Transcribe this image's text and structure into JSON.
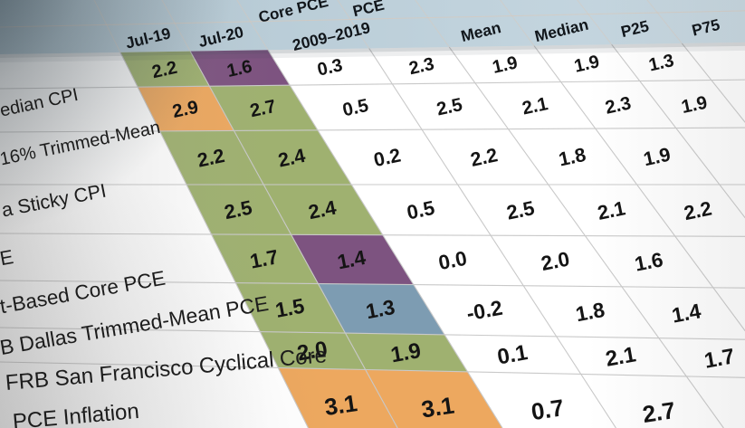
{
  "chart_data": {
    "type": "table",
    "title": "",
    "group_headers": [
      "Core PCE",
      "PCE"
    ],
    "column_headers": [
      "Jul-19",
      "Jul-20",
      "2009–2019",
      "",
      "Mean",
      "Median",
      "P25",
      "P75"
    ],
    "rows": [
      {
        "label": "",
        "label_line2": "",
        "values": [
          "2.2",
          "1.6",
          "0.3",
          "2.3",
          "1.9",
          "1.9",
          "1.3",
          ""
        ],
        "cell_colors": [
          "green",
          "purple"
        ]
      },
      {
        "label": "edian CPI",
        "label_line2": "",
        "values": [
          "2.9",
          "2.7",
          "0.5",
          "2.5",
          "2.1",
          "2.3",
          "1.9",
          ""
        ],
        "cell_colors": [
          "orange",
          "green"
        ]
      },
      {
        "label": "16% Trimmed-Mean",
        "label_line2": "",
        "values": [
          "2.2",
          "2.4",
          "0.2",
          "2.2",
          "1.8",
          "1.9",
          "",
          ""
        ],
        "cell_colors": [
          "green",
          "green"
        ]
      },
      {
        "label": "a Sticky CPI",
        "label_line2": "",
        "values": [
          "2.5",
          "2.4",
          "0.5",
          "2.5",
          "2.1",
          "2.2",
          "",
          ""
        ],
        "cell_colors": [
          "green",
          "green"
        ]
      },
      {
        "label": "E",
        "label_line2": "",
        "values": [
          "1.7",
          "1.4",
          "0.0",
          "2.0",
          "1.6",
          "",
          "",
          ""
        ],
        "cell_colors": [
          "green",
          "purple"
        ]
      },
      {
        "label": "t-Based Core PCE",
        "label_line2": "",
        "values": [
          "1.5",
          "1.3",
          "-0.2",
          "1.8",
          "1.4",
          "",
          "",
          ""
        ],
        "cell_colors": [
          "green",
          "blue"
        ]
      },
      {
        "label": "B Dallas Trimmed-Mean PCE",
        "label_line2": "",
        "values": [
          "2.0",
          "1.9",
          "0.1",
          "2.1",
          "1.7",
          "",
          "",
          ""
        ],
        "cell_colors": [
          "green",
          "green"
        ]
      },
      {
        "label": "FRB San Francisco Cyclical Core",
        "label_line2": "PCE Inflation",
        "values": [
          "3.1",
          "3.1",
          "0.7",
          "2.7",
          "",
          "",
          "",
          ""
        ],
        "cell_colors": [
          "orange",
          "orange"
        ]
      }
    ],
    "palette": {
      "green": "#9fb170",
      "purple": "#7d5380",
      "orange": "#eda85f",
      "blue": "#7d9cb2",
      "header_band": "#bccfd9",
      "gridline": "#c9c9c9"
    },
    "layout_hints": {
      "grid": true,
      "legend": false
    }
  }
}
